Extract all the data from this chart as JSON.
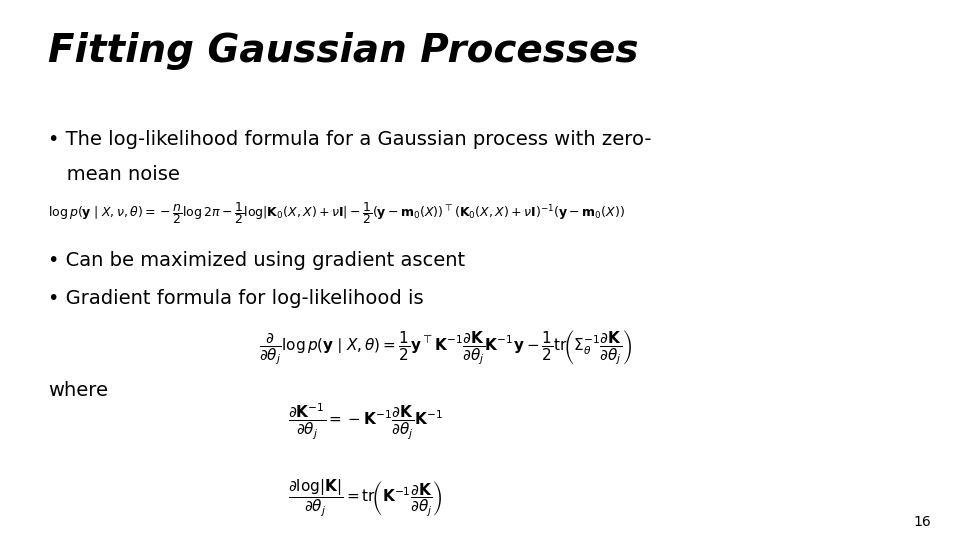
{
  "title": "Fitting Gaussian Processes",
  "background_color": "#ffffff",
  "text_color": "#000000",
  "page_number": "16",
  "bullet1_line1": "• The log-likelihood formula for a Gaussian process with zero-",
  "bullet1_line2": "   mean noise",
  "bullet2": "• Can be maximized using gradient ascent",
  "bullet3": "• Gradient formula for log-likelihood is",
  "where_label": "where",
  "title_fontsize": 28,
  "bullet_fontsize": 14,
  "formula1_fontsize": 9.0,
  "formula2_fontsize": 11,
  "formula3_fontsize": 11,
  "formula4_fontsize": 11,
  "page_fontsize": 10
}
